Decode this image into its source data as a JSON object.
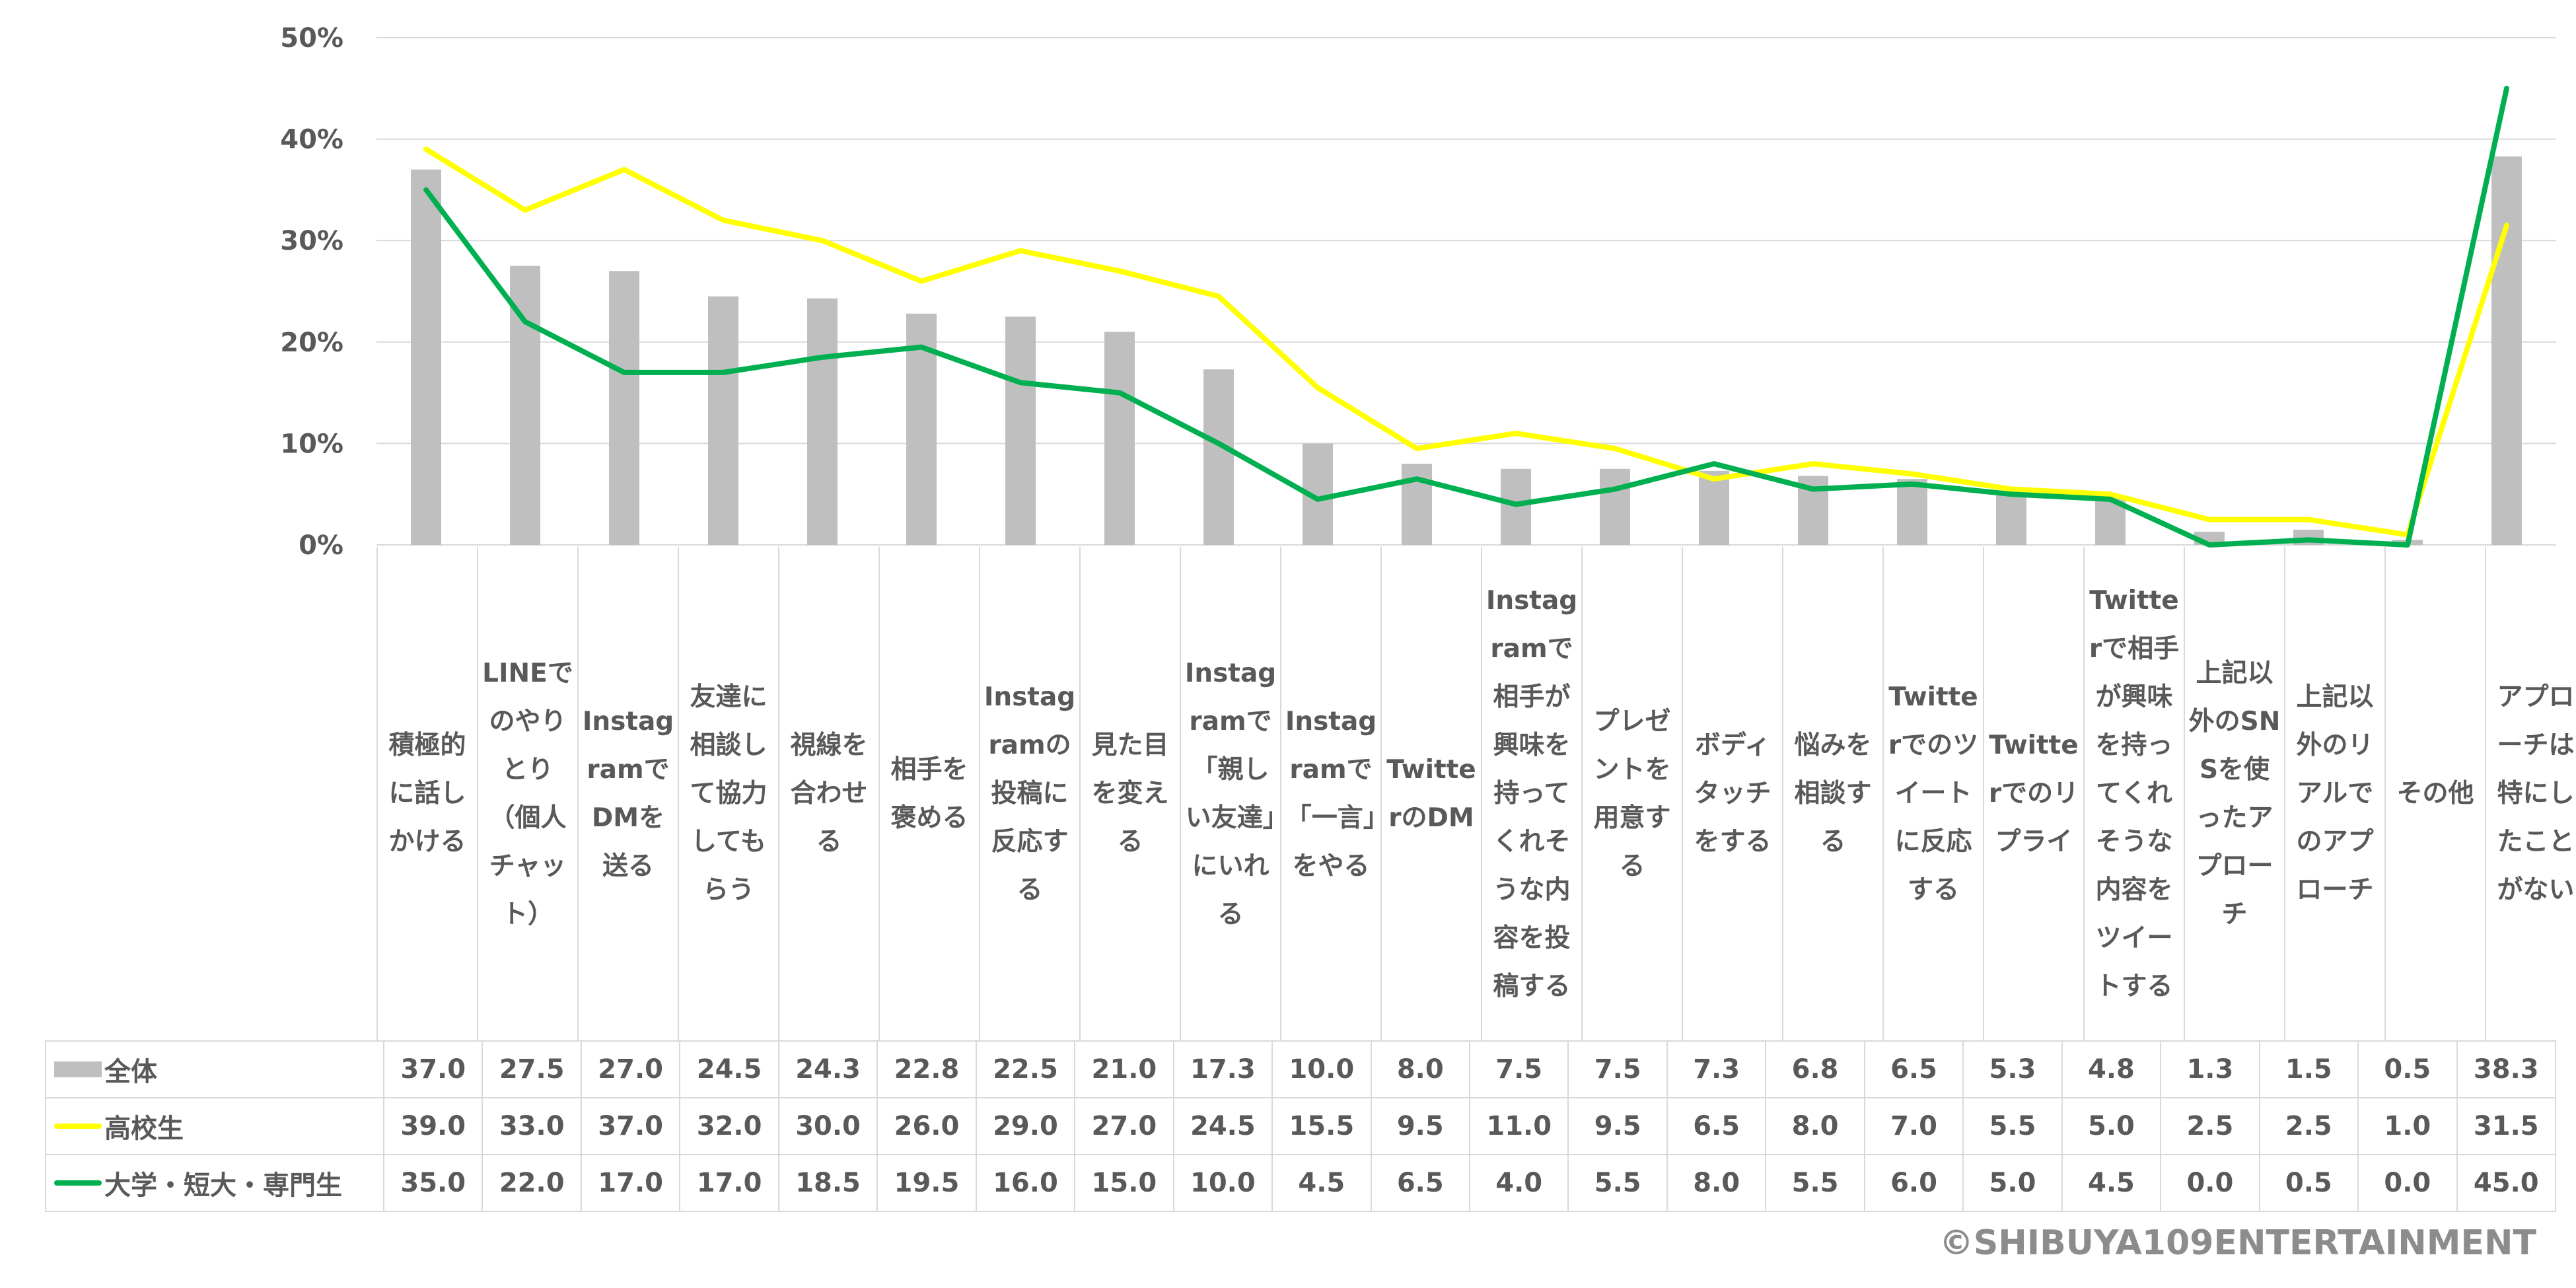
{
  "chart_data": {
    "type": "bar+line",
    "categories": [
      "積極的に話しかける",
      "LINEでのやりとり（個人チャット）",
      "InstagramでDMを送る",
      "友達に相談して協力してもらう",
      "視線を合わせる",
      "相手を褒める",
      "Instagramの投稿に反応する",
      "見た目を変える",
      "Instagramで「親しい友達」にいれる",
      "Instagramで「一言」をやる",
      "TwitterのDM",
      "Instagramで相手が興味を持ってくれそうな内容を投稿する",
      "プレゼントを用意する",
      "ボディタッチをする",
      "悩みを相談する",
      "Twitterでのツイートに反応する",
      "Twitterでのリプライ",
      "Twitterで相手が興味を持ってくれそうな内容をツイートする",
      "上記以外のSNSを使ったアプローチ",
      "上記以外のリアルでのアプローチ",
      "その他",
      "アプローチは特にしたことがない"
    ],
    "series": [
      {
        "name": "全体",
        "kind": "bar",
        "color": "#bfbfbf",
        "values": [
          37.0,
          27.5,
          27.0,
          24.5,
          24.3,
          22.8,
          22.5,
          21.0,
          17.3,
          10.0,
          8.0,
          7.5,
          7.5,
          7.3,
          6.8,
          6.5,
          5.3,
          4.8,
          1.3,
          1.5,
          0.5,
          38.3
        ],
        "labels": [
          "37.0",
          "27.5",
          "27.0",
          "24.5",
          "24.3",
          "22.8",
          "22.5",
          "21.0",
          "17.3",
          "10.0",
          "8.0",
          "7.5",
          "7.5",
          "7.3",
          "6.8",
          "6.5",
          "5.3",
          "4.8",
          "1.3",
          "1.5",
          "0.5",
          "38.3"
        ]
      },
      {
        "name": "高校生",
        "kind": "line",
        "color": "#ffff00",
        "values": [
          39.0,
          33.0,
          37.0,
          32.0,
          30.0,
          26.0,
          29.0,
          27.0,
          24.5,
          15.5,
          9.5,
          11.0,
          9.5,
          6.5,
          8.0,
          7.0,
          5.5,
          5.0,
          2.5,
          2.5,
          1.0,
          31.5
        ],
        "labels": [
          "39.0",
          "33.0",
          "37.0",
          "32.0",
          "30.0",
          "26.0",
          "29.0",
          "27.0",
          "24.5",
          "15.5",
          "9.5",
          "11.0",
          "9.5",
          "6.5",
          "8.0",
          "7.0",
          "5.5",
          "5.0",
          "2.5",
          "2.5",
          "1.0",
          "31.5"
        ]
      },
      {
        "name": "大学・短大・専門生",
        "kind": "line",
        "color": "#00b050",
        "values": [
          35.0,
          22.0,
          17.0,
          17.0,
          18.5,
          19.5,
          16.0,
          15.0,
          10.0,
          4.5,
          6.5,
          4.0,
          5.5,
          8.0,
          5.5,
          6.0,
          5.0,
          4.5,
          0.0,
          0.5,
          0.0,
          45.0
        ],
        "labels": [
          "35.0",
          "22.0",
          "17.0",
          "17.0",
          "18.5",
          "19.5",
          "16.0",
          "15.0",
          "10.0",
          "4.5",
          "6.5",
          "4.0",
          "5.5",
          "8.0",
          "5.5",
          "6.0",
          "5.0",
          "4.5",
          "0.0",
          "0.5",
          "0.0",
          "45.0"
        ]
      }
    ],
    "yticks": [
      "0%",
      "10%",
      "20%",
      "30%",
      "40%",
      "50%"
    ],
    "ylim": [
      0,
      50
    ],
    "grid": true,
    "legend": "data-table-left"
  },
  "copyright": "©SHIBUYA109ENTERTAINMENT"
}
